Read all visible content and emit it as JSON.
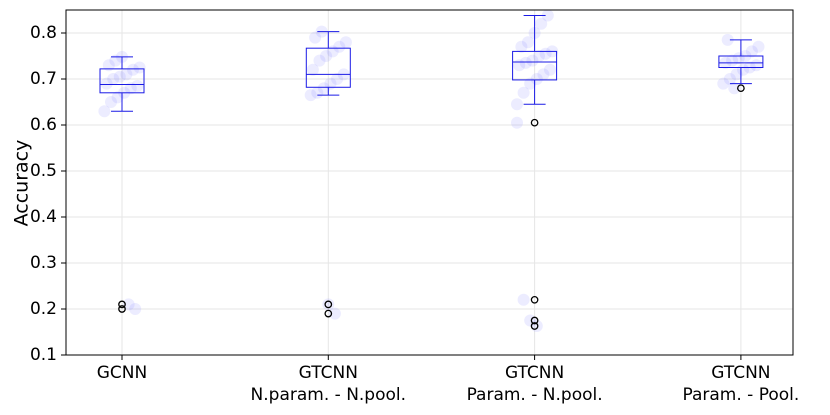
{
  "chart_data": {
    "type": "box",
    "y_label": "Accuracy",
    "categories": [
      [
        "GCNN"
      ],
      [
        "GTCNN",
        "N.param. - N.pool."
      ],
      [
        "GTCNN",
        "Param. - N.pool."
      ],
      [
        "GTCNN",
        "Param. - Pool."
      ]
    ],
    "boxes": [
      {
        "whislo": 0.63,
        "q1": 0.67,
        "med": 0.688,
        "q3": 0.722,
        "whishi": 0.748,
        "fliers": [
          0.21,
          0.2
        ],
        "points": [
          0.63,
          0.65,
          0.66,
          0.67,
          0.68,
          0.685,
          0.69,
          0.7,
          0.705,
          0.71,
          0.72,
          0.725,
          0.73,
          0.74,
          0.748,
          0.21,
          0.2
        ]
      },
      {
        "whislo": 0.665,
        "q1": 0.682,
        "med": 0.71,
        "q3": 0.767,
        "whishi": 0.803,
        "fliers": [
          0.21,
          0.19
        ],
        "points": [
          0.665,
          0.67,
          0.68,
          0.69,
          0.7,
          0.71,
          0.72,
          0.74,
          0.75,
          0.76,
          0.77,
          0.78,
          0.79,
          0.803,
          0.21,
          0.19
        ]
      },
      {
        "whislo": 0.645,
        "q1": 0.698,
        "med": 0.737,
        "q3": 0.76,
        "whishi": 0.838,
        "fliers": [
          0.605,
          0.22,
          0.175,
          0.163
        ],
        "points": [
          0.645,
          0.67,
          0.69,
          0.7,
          0.71,
          0.72,
          0.73,
          0.735,
          0.74,
          0.75,
          0.755,
          0.76,
          0.77,
          0.78,
          0.8,
          0.82,
          0.838,
          0.605,
          0.22,
          0.175,
          0.163
        ]
      },
      {
        "whislo": 0.69,
        "q1": 0.725,
        "med": 0.735,
        "q3": 0.75,
        "whishi": 0.785,
        "fliers": [
          0.68
        ],
        "points": [
          0.69,
          0.7,
          0.71,
          0.72,
          0.725,
          0.73,
          0.735,
          0.74,
          0.745,
          0.75,
          0.76,
          0.77,
          0.785,
          0.68
        ]
      }
    ],
    "box_color": "#1a1ae6",
    "point_color": "rgba(110,110,255,0.13)",
    "flier_color": "#000000",
    "ylim": [
      0.1,
      0.85
    ],
    "yticks": [
      0.1,
      0.2,
      0.3,
      0.4,
      0.5,
      0.6,
      0.7,
      0.8
    ],
    "grid": true
  }
}
